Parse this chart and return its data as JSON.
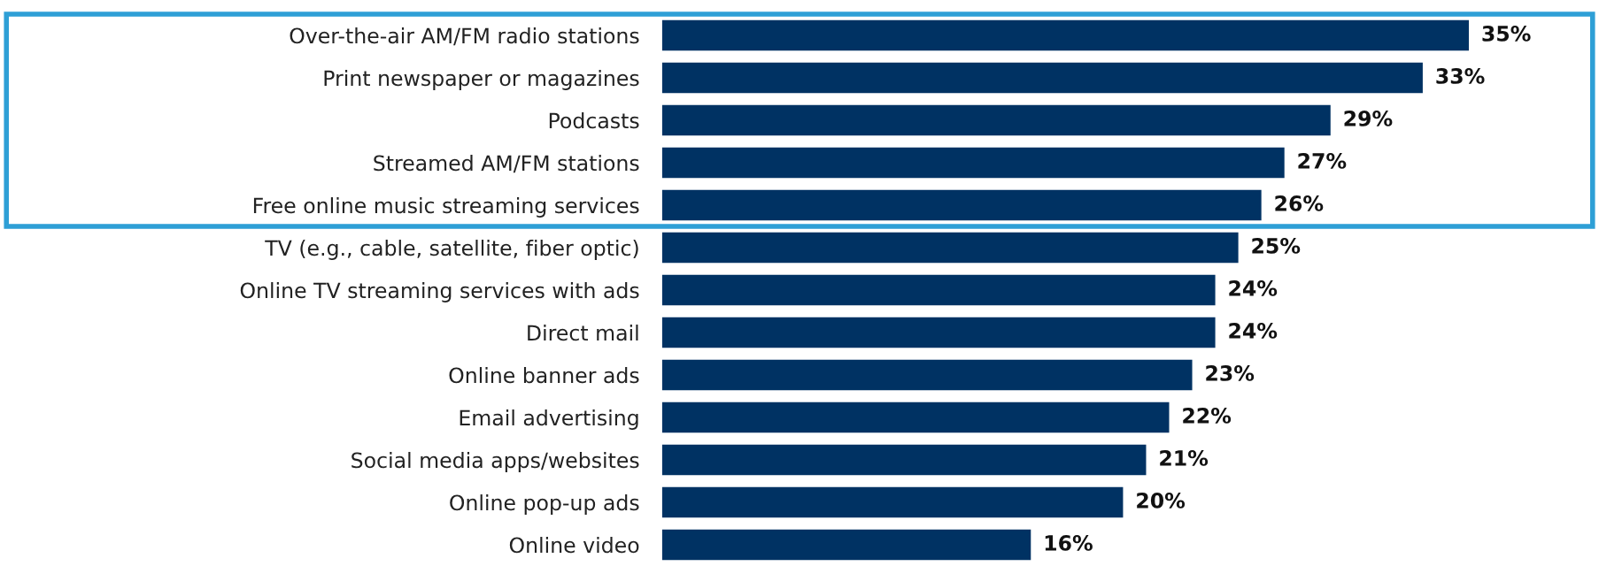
{
  "chart_data": {
    "type": "bar",
    "orientation": "horizontal",
    "categories": [
      "Over-the-air AM/FM radio stations",
      "Print newspaper or magazines",
      "Podcasts",
      "Streamed AM/FM stations",
      "Free online music streaming services",
      "TV (e.g., cable, satellite, fiber optic)",
      "Online TV streaming services with ads",
      "Direct mail",
      "Online banner ads",
      "Email advertising",
      "Social media apps/websites",
      "Online pop-up ads",
      "Online video"
    ],
    "values": [
      35,
      33,
      29,
      27,
      26,
      25,
      24,
      24,
      23,
      22,
      21,
      20,
      16
    ],
    "value_labels": [
      "35%",
      "33%",
      "29%",
      "27%",
      "26%",
      "25%",
      "24%",
      "24%",
      "23%",
      "22%",
      "21%",
      "20%",
      "16%"
    ],
    "color": "#003263",
    "grid": false,
    "legend": false
  }
}
